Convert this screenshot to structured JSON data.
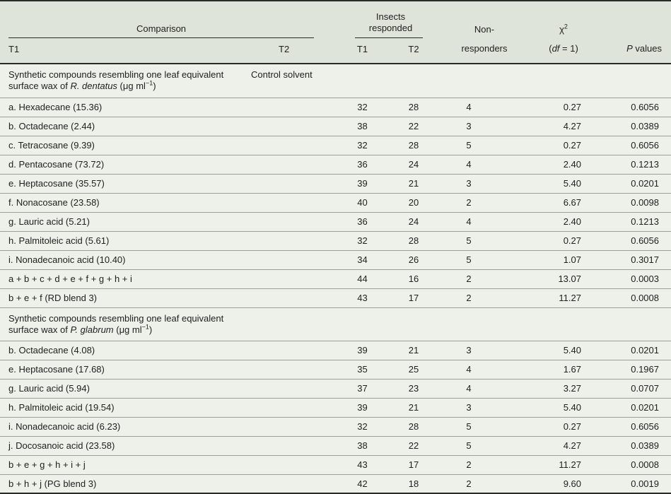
{
  "colors": {
    "header_bg": "#dee4da",
    "body_bg": "#edf1ea",
    "border_dark": "#2a2c2a",
    "border_light": "#9aa096",
    "text": "#212121"
  },
  "header": {
    "comparison": {
      "label": "Comparison",
      "t1": "T1",
      "t2": "T2"
    },
    "insects": {
      "label_parts": [
        {
          "t": "Insects responded"
        }
      ],
      "line1": "Insects",
      "line2": "responded",
      "t1": "T1",
      "t2": "T2"
    },
    "non_responders": {
      "line1": "Non-",
      "line2": "responders"
    },
    "chi": {
      "symbol_parts": [
        {
          "t": "χ"
        },
        {
          "t": "2",
          "style": "sup"
        }
      ],
      "df_parts": [
        {
          "t": "("
        },
        {
          "t": "df",
          "style": "i"
        },
        {
          "t": " = 1)"
        }
      ]
    },
    "p_parts": [
      {
        "t": "P",
        "style": "i"
      },
      {
        "t": " values"
      }
    ]
  },
  "rows": [
    {
      "type": "section",
      "parts": [
        {
          "t": "Synthetic compounds resembling one leaf equivalent surface wax of "
        },
        {
          "t": "R. dentatus",
          "style": "i"
        },
        {
          "t": " (μg ml"
        },
        {
          "t": "−1",
          "style": "sup"
        },
        {
          "t": ")"
        }
      ],
      "t2": "Control solvent"
    },
    {
      "type": "data",
      "label": "a. Hexadecane (15.36)",
      "t1": "32",
      "t2": "28",
      "non": "4",
      "chi": "0.27",
      "p": "0.6056"
    },
    {
      "type": "data",
      "label": "b. Octadecane (2.44)",
      "t1": "38",
      "t2": "22",
      "non": "3",
      "chi": "4.27",
      "p": "0.0389"
    },
    {
      "type": "data",
      "label": "c. Tetracosane (9.39)",
      "t1": "32",
      "t2": "28",
      "non": "5",
      "chi": "0.27",
      "p": "0.6056"
    },
    {
      "type": "data",
      "label": "d. Pentacosane (73.72)",
      "t1": "36",
      "t2": "24",
      "non": "4",
      "chi": "2.40",
      "p": "0.1213"
    },
    {
      "type": "data",
      "label": "e. Heptacosane (35.57)",
      "t1": "39",
      "t2": "21",
      "non": "3",
      "chi": "5.40",
      "p": "0.0201"
    },
    {
      "type": "data",
      "label": "f. Nonacosane (23.58)",
      "t1": "40",
      "t2": "20",
      "non": "2",
      "chi": "6.67",
      "p": "0.0098"
    },
    {
      "type": "data",
      "label": "g. Lauric acid (5.21)",
      "t1": "36",
      "t2": "24",
      "non": "4",
      "chi": "2.40",
      "p": "0.1213"
    },
    {
      "type": "data",
      "label": "h. Palmitoleic acid (5.61)",
      "t1": "32",
      "t2": "28",
      "non": "5",
      "chi": "0.27",
      "p": "0.6056"
    },
    {
      "type": "data",
      "label": "i. Nonadecanoic acid (10.40)",
      "t1": "34",
      "t2": "26",
      "non": "5",
      "chi": "1.07",
      "p": "0.3017"
    },
    {
      "type": "data",
      "label": "a + b + c + d + e + f + g + h + i",
      "t1": "44",
      "t2": "16",
      "non": "2",
      "chi": "13.07",
      "p": "0.0003"
    },
    {
      "type": "data",
      "label": "b + e + f (RD blend 3)",
      "t1": "43",
      "t2": "17",
      "non": "2",
      "chi": "11.27",
      "p": "0.0008"
    },
    {
      "type": "section",
      "parts": [
        {
          "t": "Synthetic compounds resembling one leaf equivalent surface wax of "
        },
        {
          "t": "P. glabrum",
          "style": "i"
        },
        {
          "t": " (μg ml"
        },
        {
          "t": "−1",
          "style": "sup"
        },
        {
          "t": ")"
        }
      ],
      "t2": ""
    },
    {
      "type": "data",
      "label": "b. Octadecane (4.08)",
      "t1": "39",
      "t2": "21",
      "non": "3",
      "chi": "5.40",
      "p": "0.0201"
    },
    {
      "type": "data",
      "label": "e. Heptacosane (17.68)",
      "t1": "35",
      "t2": "25",
      "non": "4",
      "chi": "1.67",
      "p": "0.1967"
    },
    {
      "type": "data",
      "label": "g. Lauric acid (5.94)",
      "t1": "37",
      "t2": "23",
      "non": "4",
      "chi": "3.27",
      "p": "0.0707"
    },
    {
      "type": "data",
      "label": "h. Palmitoleic acid (19.54)",
      "t1": "39",
      "t2": "21",
      "non": "3",
      "chi": "5.40",
      "p": "0.0201"
    },
    {
      "type": "data",
      "label": "i. Nonadecanoic acid (6.23)",
      "t1": "32",
      "t2": "28",
      "non": "5",
      "chi": "0.27",
      "p": "0.6056"
    },
    {
      "type": "data",
      "label": "j. Docosanoic acid (23.58)",
      "t1": "38",
      "t2": "22",
      "non": "5",
      "chi": "4.27",
      "p": "0.0389"
    },
    {
      "type": "data",
      "label": "b + e + g + h + i + j",
      "t1": "43",
      "t2": "17",
      "non": "2",
      "chi": "11.27",
      "p": "0.0008"
    },
    {
      "type": "data",
      "label": "b + h + j (PG blend 3)",
      "t1": "42",
      "t2": "18",
      "non": "2",
      "chi": "9.60",
      "p": "0.0019"
    }
  ]
}
